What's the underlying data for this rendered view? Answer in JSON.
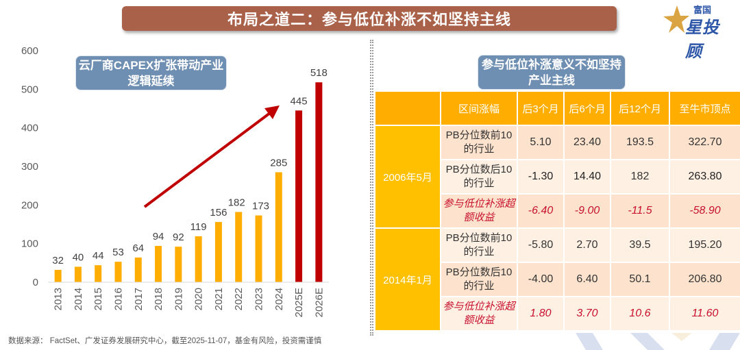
{
  "header": {
    "title": "布局之道二：参与低位补涨不如坚持主线"
  },
  "logo": {
    "top_text": "富国",
    "main_text": "星投顾",
    "colors": {
      "star": "#d9a441",
      "text": "#2d56a8"
    }
  },
  "left_panel": {
    "callout": "云厂商CAPEX扩张带动产业逻辑延续"
  },
  "chart_data": {
    "type": "bar",
    "title": "云厂商CAPEX扩张带动产业逻辑延续",
    "xlabel": "",
    "ylabel": "",
    "categories": [
      "2013",
      "2014",
      "2015",
      "2016",
      "2017",
      "2018",
      "2019",
      "2020",
      "2021",
      "2022",
      "2023",
      "2024",
      "2025E",
      "2026E"
    ],
    "values": [
      32,
      40,
      44,
      53,
      64,
      94,
      92,
      119,
      156,
      182,
      173,
      285,
      445,
      518
    ],
    "estimate_flags": [
      false,
      false,
      false,
      false,
      false,
      false,
      false,
      false,
      false,
      false,
      false,
      false,
      true,
      true
    ],
    "colors": {
      "actual": "#ffad00",
      "estimate": "#c00000",
      "arrow": "#c00000"
    },
    "ylim": [
      0,
      600
    ],
    "yticks": [
      0,
      100,
      200,
      300,
      400,
      500,
      600
    ],
    "grid": false,
    "legend": "none",
    "annotations": [
      "upward trend arrow from 2017 to 2024"
    ]
  },
  "right_panel": {
    "callout": "参与低位补涨意义不如坚持产业主线",
    "table": {
      "headers": [
        "",
        "区间涨幅",
        "后3个月",
        "后6个月",
        "后12个月",
        "至牛市顶点"
      ],
      "groups": [
        {
          "period": "2006年5月",
          "rows": [
            {
              "label": "PB分位数前10的行业",
              "values": [
                "5.10",
                "23.40",
                "193.5",
                "322.70"
              ],
              "style": "normal"
            },
            {
              "label": "PB分位数后10的行业",
              "values": [
                "-1.30",
                "14.40",
                "182",
                "263.80"
              ],
              "style": "normal"
            },
            {
              "label": "参与低位补涨超额收益",
              "values": [
                "-6.40",
                "-9.00",
                "-11.5",
                "-58.90"
              ],
              "style": "excess"
            }
          ]
        },
        {
          "period": "2014年1月",
          "rows": [
            {
              "label": "PB分位数前10的行业",
              "values": [
                "-5.80",
                "2.70",
                "39.5",
                "195.20"
              ],
              "style": "normal"
            },
            {
              "label": "PB分位数后10的行业",
              "values": [
                "-4.00",
                "6.40",
                "50.1",
                "206.80"
              ],
              "style": "normal"
            },
            {
              "label": "参与低位补涨超额收益",
              "values": [
                "1.80",
                "3.70",
                "10.6",
                "11.60"
              ],
              "style": "excess"
            }
          ]
        }
      ]
    }
  },
  "footer": {
    "source": "数据来源： FactSet、广发证券发展研究中心，截至2025-11-07，基金有风险，投资需谨慎"
  }
}
